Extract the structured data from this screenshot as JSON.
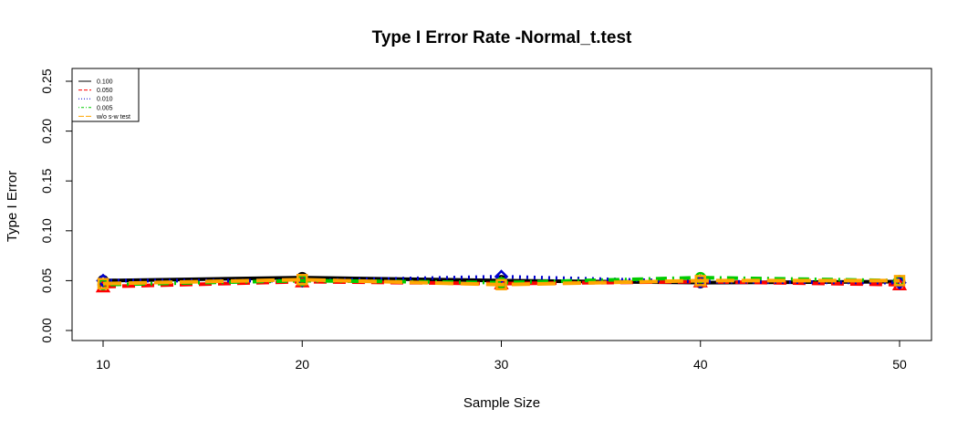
{
  "chart_data": {
    "type": "line",
    "title": "Type I Error Rate -Normal_t.test",
    "xlabel": "Sample Size",
    "ylabel": "Type I Error",
    "x": [
      10,
      20,
      30,
      40,
      50
    ],
    "xlim": [
      10,
      50
    ],
    "ylim": [
      0,
      0.25
    ],
    "x_ticks": [
      "10",
      "20",
      "30",
      "40",
      "50"
    ],
    "y_ticks": [
      "0.00",
      "0.05",
      "0.10",
      "0.15",
      "0.20",
      "0.25"
    ],
    "grid": false,
    "legend_position": "top-left",
    "series": [
      {
        "name": "0.100",
        "values": [
          0.05,
          0.053,
          0.05,
          0.048,
          0.049
        ],
        "color": "#000000",
        "dash": "solid",
        "marker": "circle"
      },
      {
        "name": "0.050",
        "values": [
          0.044,
          0.049,
          0.047,
          0.049,
          0.046
        ],
        "color": "#ff0000",
        "dash": "dashed",
        "marker": "triangle"
      },
      {
        "name": "0.010",
        "values": [
          0.05,
          0.05,
          0.054,
          0.049,
          0.048
        ],
        "color": "#0000cd",
        "dash": "dotted",
        "marker": "diamond"
      },
      {
        "name": "0.005",
        "values": [
          0.046,
          0.05,
          0.048,
          0.053,
          0.05
        ],
        "color": "#00cc00",
        "dash": "dotdash",
        "marker": "circle"
      },
      {
        "name": "w/o s-w test",
        "values": [
          0.047,
          0.051,
          0.046,
          0.05,
          0.05
        ],
        "color": "#ffa500",
        "dash": "longdash",
        "marker": "square"
      }
    ]
  }
}
